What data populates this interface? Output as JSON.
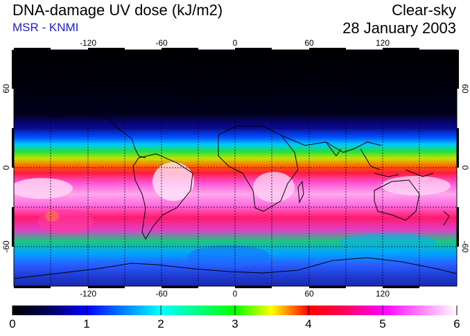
{
  "header": {
    "title": "DNA-damage UV dose (kJ/m2)",
    "source": "MSR - KNMI",
    "condition": "Clear-sky",
    "date": "28 January 2003"
  },
  "map": {
    "lon_ticks": [
      -120,
      -60,
      0,
      60,
      120
    ],
    "lat_ticks": [
      60,
      0,
      -60
    ],
    "lon_range": [
      -180,
      180
    ],
    "lat_range": [
      -90,
      90
    ]
  },
  "colorbar": {
    "min": 0,
    "max": 6,
    "labels": [
      "0",
      "1",
      "2",
      "3",
      "4",
      "5",
      "6"
    ],
    "colors": [
      "#000000",
      "#0000ff",
      "#00ffff",
      "#00ff00",
      "#ffff00",
      "#ff0000",
      "#ff00ff",
      "#ffffff"
    ]
  }
}
